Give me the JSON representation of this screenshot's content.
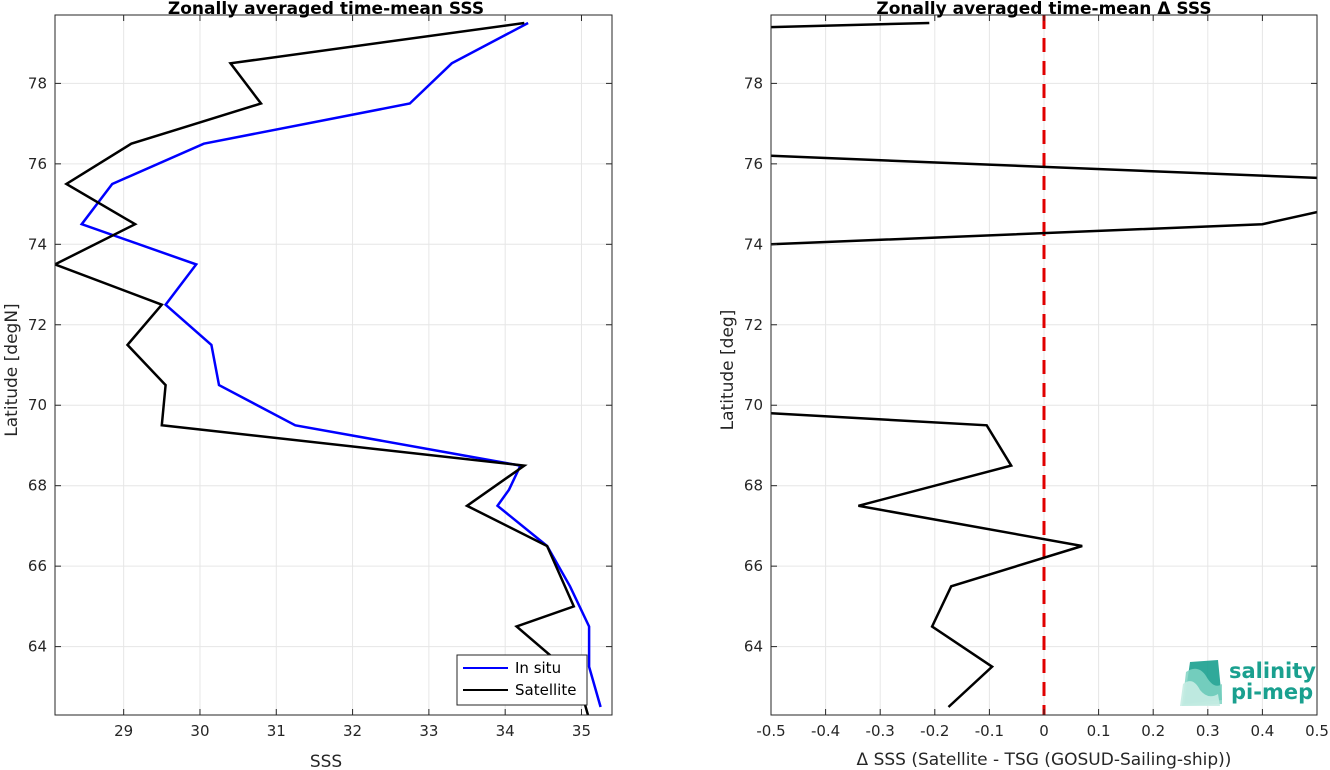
{
  "chart_data": [
    {
      "type": "line",
      "title": "Zonally averaged time-mean SSS",
      "xlabel": "SSS",
      "ylabel": "Latitude [degN]",
      "xlim": [
        28.1,
        35.4
      ],
      "ylim": [
        62.3,
        79.7
      ],
      "xticks": [
        29,
        30,
        31,
        32,
        33,
        34,
        35
      ],
      "yticks": [
        64,
        66,
        68,
        70,
        72,
        74,
        76,
        78
      ],
      "grid": true,
      "legend": "bottom-right",
      "series": [
        {
          "name": "In situ",
          "color": "#0000ff",
          "x": [
            35.25,
            35.1,
            35.1,
            34.85,
            34.55,
            33.9,
            34.05,
            34.2,
            31.25,
            30.25,
            30.15,
            29.55,
            29.95,
            28.45,
            28.85,
            30.05,
            32.75,
            33.3,
            34.3
          ],
          "y": [
            62.5,
            63.5,
            64.5,
            65.5,
            66.5,
            67.5,
            67.9,
            68.5,
            69.5,
            70.5,
            71.5,
            72.5,
            73.5,
            74.5,
            75.5,
            76.5,
            77.5,
            78.5,
            79.5
          ]
        },
        {
          "name": "Satellite",
          "color": "#000000",
          "x": [
            35.1,
            34.95,
            34.15,
            34.9,
            34.55,
            33.5,
            34.25,
            29.5,
            29.55,
            29.05,
            29.5,
            28.1,
            29.15,
            28.25,
            29.1,
            30.8,
            30.4,
            34.25
          ],
          "y": [
            62.2,
            63.2,
            64.5,
            65.0,
            66.5,
            67.5,
            68.5,
            69.5,
            70.5,
            71.5,
            72.5,
            73.5,
            74.5,
            75.5,
            76.5,
            77.5,
            78.5,
            79.5
          ]
        }
      ]
    },
    {
      "type": "line",
      "title": "Zonally averaged time-mean Δ SSS",
      "xlabel": "Δ SSS (Satellite - TSG (GOSUD-Sailing-ship))",
      "ylabel": "Latitude [deg]",
      "xlim": [
        -0.5,
        0.5
      ],
      "ylim": [
        62.3,
        79.7
      ],
      "xticks": [
        -0.5,
        -0.4,
        -0.3,
        -0.2,
        -0.1,
        0,
        0.1,
        0.2,
        0.3,
        0.4,
        0.5
      ],
      "xticklabels": [
        "-0.5",
        "-0.4",
        "-0.3",
        "-0.2",
        "-0.1",
        "0",
        "0.1",
        "0.2",
        "0.3",
        "0.4",
        "0.5"
      ],
      "yticks": [
        64,
        66,
        68,
        70,
        72,
        74,
        76,
        78
      ],
      "grid": true,
      "reference_line": {
        "x": 0,
        "color": "#e00000",
        "style": "dashed"
      },
      "segments": [
        {
          "x": [
            -0.5,
            -0.21
          ],
          "y": [
            79.4,
            79.5
          ]
        },
        {
          "x": [
            -0.5,
            0.5
          ],
          "y": [
            76.2,
            75.65
          ]
        },
        {
          "x": [
            -0.5,
            0.4,
            0.5
          ],
          "y": [
            74.0,
            74.5,
            74.8
          ]
        },
        {
          "x": [
            -0.5,
            -0.105,
            -0.06,
            -0.34,
            0.07,
            -0.17,
            -0.205,
            -0.095,
            -0.175
          ],
          "y": [
            69.8,
            69.5,
            68.5,
            67.5,
            66.5,
            65.5,
            64.5,
            63.5,
            62.5
          ]
        }
      ]
    }
  ],
  "legend": {
    "in_situ": "In situ",
    "satellite": "Satellite"
  },
  "logo": {
    "line1": "salinity",
    "line2": "pi-mep",
    "color": "#1aa08f"
  },
  "colors": {
    "in_situ": "#0000ff",
    "satellite": "#000000",
    "zero_line": "#e00000",
    "grid": "#e6e6e6"
  }
}
